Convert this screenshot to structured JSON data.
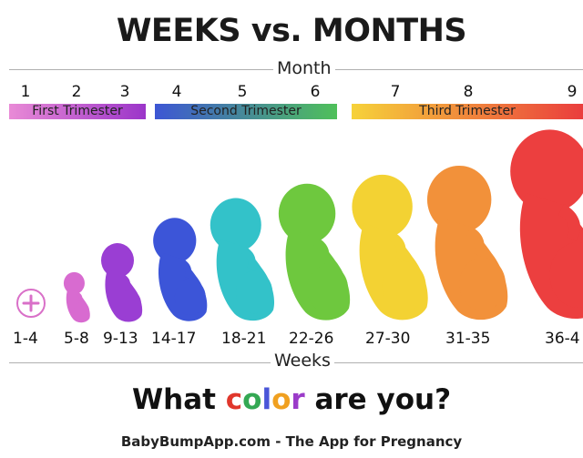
{
  "title": "WEEKS vs. MONTHS",
  "month_label": "Month",
  "weeks_label": "Weeks",
  "months": [
    "1",
    "2",
    "3",
    "4",
    "5",
    "6",
    "7",
    "8",
    "9"
  ],
  "trimesters": [
    {
      "label": "First Trimester",
      "color_start": "#e98ad6",
      "color_end": "#9b35c9"
    },
    {
      "label": "Second Trimester",
      "color_start": "#3d56d4",
      "color_end": "#4fc05a"
    },
    {
      "label": "Third Trimester",
      "color_start": "#f6d23a",
      "color_end": "#ea3d3d"
    }
  ],
  "week_ranges": [
    "1-4",
    "5-8",
    "9-13",
    "14-17",
    "18-21",
    "22-26",
    "27-30",
    "31-35",
    "36-4"
  ],
  "stage_colors": [
    "#d970c8",
    "#d86bd0",
    "#9a3ed3",
    "#3c55d8",
    "#33c2c9",
    "#6ec83e",
    "#f3d233",
    "#f2913a",
    "#ec3f3f"
  ],
  "question": {
    "part1": "What ",
    "part2": "color",
    "part3": " are you?"
  },
  "question_colors": [
    "#e0372c",
    "#34a853",
    "#4a56d8",
    "#f0a020",
    "#9b3bc9"
  ],
  "footer": "BabyBumpApp.com - The App for Pregnancy"
}
